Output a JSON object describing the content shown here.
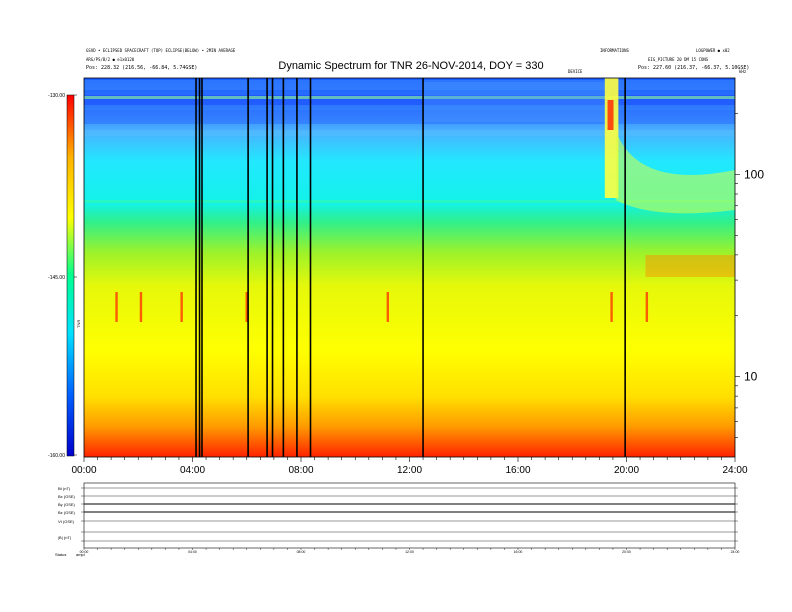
{
  "header": {
    "left_line1": "GSVD • ECLIPSED SPACECRAFT (TOP) ECLIPSE(BELOW) • 2MIN AVERAGE",
    "left_line2": "ARG/PS/B/2 ● e1x0120",
    "left_line3": "Pos:    228.32 (216.56, -66.84, 5.74GSE)",
    "right_line1": "INFORMATIONS",
    "right_line2": "LOGPOWER ● x02",
    "right_line3": "EIG_PICTURE 20 DM 15 CONS",
    "right_line4": "Pos:    227.60 (216.37, -66.37, 5.10GSE)",
    "right_small": "kHz",
    "center_small": "DEVICE"
  },
  "chart_data": {
    "type": "heatmap",
    "title": "Dynamic Spectrum for TNR 26-NOV-2014, DOY = 330",
    "x_ticks": [
      "00:00",
      "04:00",
      "08:00",
      "12:00",
      "16:00",
      "20:00",
      "24:00"
    ],
    "x_range_hours": [
      0,
      24
    ],
    "colorbar": {
      "ticks": [
        "-130.00",
        "-145.00",
        "-160.00"
      ],
      "label": "TNR",
      "range": [
        -160,
        -130
      ],
      "colors": [
        "#0000cc",
        "#0060ff",
        "#00e0ff",
        "#00ff90",
        "#ffff00",
        "#ffb000",
        "#ff0000"
      ]
    },
    "y_right_ticks": [
      "100",
      "10"
    ],
    "y_scale": "log",
    "data_gaps_hours": [
      4.13,
      4.26,
      4.35,
      6.05,
      6.75,
      6.95,
      7.35,
      7.85,
      8.35,
      12.5,
      19.95
    ],
    "type_iii_bursts_hours": [
      1.2,
      2.1,
      3.6,
      6.0,
      11.2,
      19.45,
      20.75
    ],
    "panel_labels": [
      "Bt (nT)",
      "Bx (GSE)",
      "By (GSE)",
      "Bz (GSE)",
      "Vt (GSE)",
      "|B| (nT)"
    ],
    "bottom_label": "Status",
    "bottom_label2": "ampl",
    "bottom_x_ticks": [
      "00:00",
      "04:00",
      "08:00",
      "12:00",
      "16:00",
      "20:00",
      "24:00"
    ]
  }
}
